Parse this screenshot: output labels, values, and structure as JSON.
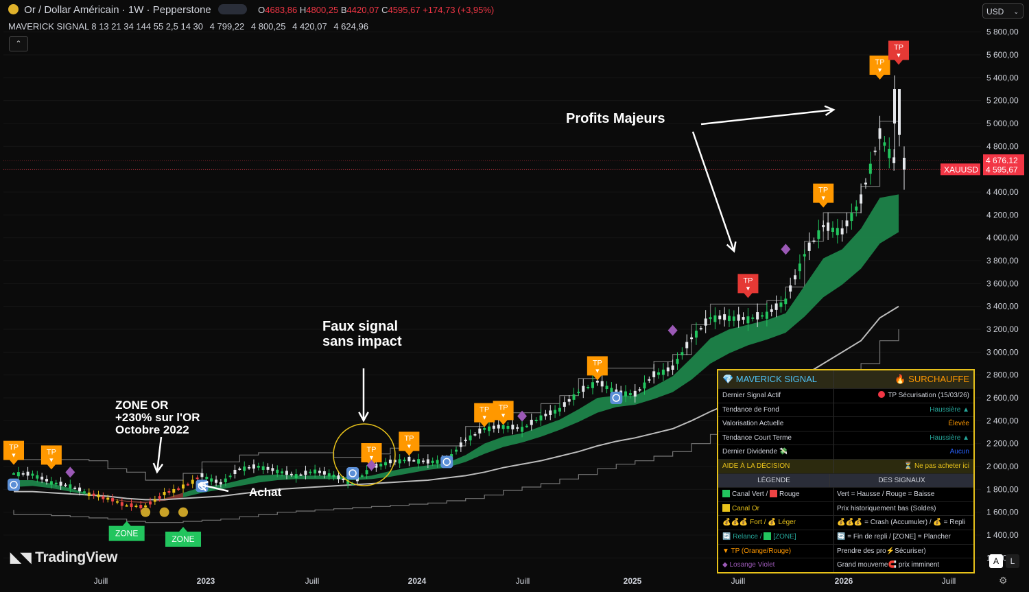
{
  "header": {
    "symbol_title": "Or / Dollar Américain · 1W · Pepperstone",
    "ohlc": {
      "o_label": "O",
      "o": "4683,86",
      "h_label": "H",
      "h": "4800,25",
      "b_label": "B",
      "b": "4420,07",
      "c_label": "C",
      "c": "4595,67",
      "change": "+174,73 (+3,95%)"
    }
  },
  "indicator": {
    "name": "MAVERICK SIGNAL 8 13 21 34 144 55 2,5 14 30",
    "values": [
      "4 799,22",
      "4 800,25",
      "4 420,07",
      "4 624,96"
    ]
  },
  "currency": "USD",
  "collapse_icon": "chevron-up-icon",
  "logo": "TradingView",
  "buttons": {
    "auto": "A",
    "log": "L"
  },
  "colors": {
    "background": "#0b0b0b",
    "band_fill": "#1e8a4c",
    "up_candle": "#22c55e",
    "down_candle": "#ef4444",
    "tp_orange": "#ff9800",
    "tp_red": "#e53935",
    "zone_green": "#22c55e",
    "diamond": "#9b59b6",
    "table_border": "#e8c21a"
  },
  "annotations": {
    "zone_or": "ZONE OR\n+230% sur l'OR\nOctobre 2022",
    "faux_signal": "Faux signal\nsans impact",
    "profits": "Profits Majeurs",
    "achat": "Achat"
  },
  "chart_data": {
    "type": "line",
    "title": "",
    "xlabel": "",
    "ylabel": "",
    "x_ticks": [
      "Juill",
      "2023",
      "Juill",
      "2024",
      "Juill",
      "2025",
      "Juill",
      "2026",
      "Juill"
    ],
    "y_ticks": [
      "1 200,00",
      "1 400,00",
      "1 600,00",
      "1 800,00",
      "2 000,00",
      "2 200,00",
      "2 400,00",
      "2 600,00",
      "2 800,00",
      "3 000,00",
      "3 200,00",
      "3 400,00",
      "3 600,00",
      "3 800,00",
      "4 000,00",
      "4 200,00",
      "4 400,00",
      "4 600,00",
      "4 800,00",
      "5 000,00",
      "5 200,00",
      "5 400,00",
      "5 600,00",
      "5 800,00"
    ],
    "ylim": [
      1100,
      5900
    ],
    "x": [
      "2022-03",
      "2022-04",
      "2022-05",
      "2022-06",
      "2022-07",
      "2022-08",
      "2022-09",
      "2022-10",
      "2022-11",
      "2022-12",
      "2023-01",
      "2023-02",
      "2023-03",
      "2023-04",
      "2023-05",
      "2023-06",
      "2023-07",
      "2023-08",
      "2023-09",
      "2023-10",
      "2023-11",
      "2023-12",
      "2024-01",
      "2024-02",
      "2024-03",
      "2024-04",
      "2024-05",
      "2024-06",
      "2024-07",
      "2024-08",
      "2024-09",
      "2024-10",
      "2024-11",
      "2024-12",
      "2025-01",
      "2025-02",
      "2025-03",
      "2025-04",
      "2025-05",
      "2025-06",
      "2025-07",
      "2025-08",
      "2025-09",
      "2025-10",
      "2025-11",
      "2025-12",
      "2026-01",
      "2026-02"
    ],
    "series": [
      {
        "values": [
          1940,
          1930,
          1860,
          1830,
          1760,
          1720,
          1660,
          1650,
          1760,
          1820,
          1920,
          1850,
          1980,
          2000,
          1960,
          1920,
          1960,
          1920,
          1850,
          1990,
          2040,
          2060,
          2040,
          2050,
          2230,
          2330,
          2350,
          2330,
          2430,
          2500,
          2650,
          2740,
          2650,
          2630,
          2800,
          2860,
          3120,
          3300,
          3300,
          3290,
          3330,
          3450,
          3850,
          4100,
          4050,
          4330,
          4900,
          4596
        ]
      },
      {
        "values": [
          1880,
          1880,
          1850,
          1810,
          1760,
          1720,
          1690,
          1680,
          1720,
          1770,
          1820,
          1840,
          1880,
          1920,
          1930,
          1920,
          1920,
          1920,
          1900,
          1920,
          1960,
          1990,
          2010,
          2030,
          2100,
          2200,
          2260,
          2290,
          2350,
          2410,
          2500,
          2600,
          2620,
          2620,
          2700,
          2790,
          2950,
          3120,
          3200,
          3240,
          3280,
          3340,
          3580,
          3820,
          3900,
          4080,
          4350,
          4380
        ]
      },
      {
        "values": [
          1820,
          1830,
          1810,
          1780,
          1750,
          1720,
          1700,
          1690,
          1700,
          1730,
          1770,
          1800,
          1830,
          1860,
          1880,
          1890,
          1890,
          1890,
          1880,
          1890,
          1910,
          1940,
          1970,
          1990,
          2040,
          2110,
          2170,
          2210,
          2260,
          2320,
          2390,
          2470,
          2520,
          2540,
          2590,
          2650,
          2760,
          2900,
          2990,
          3060,
          3110,
          3170,
          3310,
          3480,
          3590,
          3730,
          3950,
          4050
        ]
      },
      {
        "values": [
          1780,
          1780,
          1770,
          1760,
          1750,
          1740,
          1720,
          1710,
          1710,
          1720,
          1730,
          1740,
          1760,
          1780,
          1800,
          1810,
          1820,
          1830,
          1840,
          1850,
          1860,
          1870,
          1880,
          1900,
          1920,
          1950,
          1990,
          2020,
          2050,
          2090,
          2130,
          2180,
          2220,
          2250,
          2290,
          2330,
          2400,
          2480,
          2550,
          2610,
          2660,
          2710,
          2800,
          2900,
          3000,
          3100,
          3300,
          3400
        ]
      }
    ],
    "prices": {
      "last": "4 595,67",
      "last_label": "XAUUSD",
      "marker": "4 676,12"
    },
    "markers": [
      {
        "label": "TP",
        "x": "2022-03",
        "y": 2080,
        "color": "orange"
      },
      {
        "label": "TP",
        "x": "2022-05",
        "y": 2040,
        "color": "orange"
      },
      {
        "label": "TP",
        "x": "2023-10",
        "y": 2060,
        "color": "orange"
      },
      {
        "label": "TP",
        "x": "2023-12",
        "y": 2160,
        "color": "orange"
      },
      {
        "label": "TP",
        "x": "2024-04",
        "y": 2410,
        "color": "orange"
      },
      {
        "label": "TP",
        "x": "2024-05",
        "y": 2430,
        "color": "orange"
      },
      {
        "label": "TP",
        "x": "2024-10",
        "y": 2820,
        "color": "orange"
      },
      {
        "label": "TP",
        "x": "2025-06",
        "y": 3540,
        "color": "red"
      },
      {
        "label": "TP",
        "x": "2025-10",
        "y": 4330,
        "color": "orange"
      },
      {
        "label": "TP",
        "x": "2026-01",
        "y": 5450,
        "color": "orange"
      },
      {
        "label": "TP",
        "x": "2026-02",
        "y": 5580,
        "color": "red"
      }
    ],
    "zones": [
      {
        "label": "ZONE",
        "x": "2022-09",
        "y": 1480
      },
      {
        "label": "ZONE",
        "x": "2022-12",
        "y": 1430
      }
    ]
  },
  "table": {
    "header": {
      "left": "💎 MAVERICK SIGNAL",
      "right": "🔥 SURCHAUFFE"
    },
    "rows": [
      {
        "label": "Dernier Signal Actif",
        "value": "TP Sécurisation (15/03/26)",
        "color": "#d1d4dc"
      },
      {
        "label": "Tendance de Fond",
        "value": "Haussière ▲",
        "color": "#26a69a"
      },
      {
        "label": "Valorisation Actuelle",
        "value": "Élevée",
        "color": "#ff9800"
      },
      {
        "label": "Tendance Court Terme",
        "value": "Haussière ▲",
        "color": "#26a69a"
      },
      {
        "label": "Dernier Dividende 💸",
        "value": "Aucun",
        "color": "#2962ff"
      }
    ],
    "aide": {
      "label": "AIDE À LA DÉCISION",
      "value": "⏳ Ne pas acheter ici"
    },
    "legend_head": {
      "left": "LÉGENDE",
      "right": "DES SIGNAUX"
    },
    "legend": [
      {
        "left": "Canal Vert / ",
        "left2": "Rouge",
        "right": "Vert = Hausse / Rouge = Baisse"
      },
      {
        "left": "Canal Or",
        "right": "Prix historiquement bas (Soldes)"
      },
      {
        "left": "💰💰💰 Fort / 💰 Léger",
        "right": "💰💰💰 = Crash (Accumuler) / 💰 = Repli"
      },
      {
        "left": "🔄 Relance / ",
        "left2": "[ZONE]",
        "right": "🔄 = Fin de repli / [ZONE] = Plancher"
      },
      {
        "left": "▼ TP (Orange/Rouge)",
        "right": "Prendre des pro⚡Sécuriser)"
      },
      {
        "left": "◆ Losange Violet",
        "right": "Grand mouveme🧲 prix imminent"
      }
    ]
  }
}
